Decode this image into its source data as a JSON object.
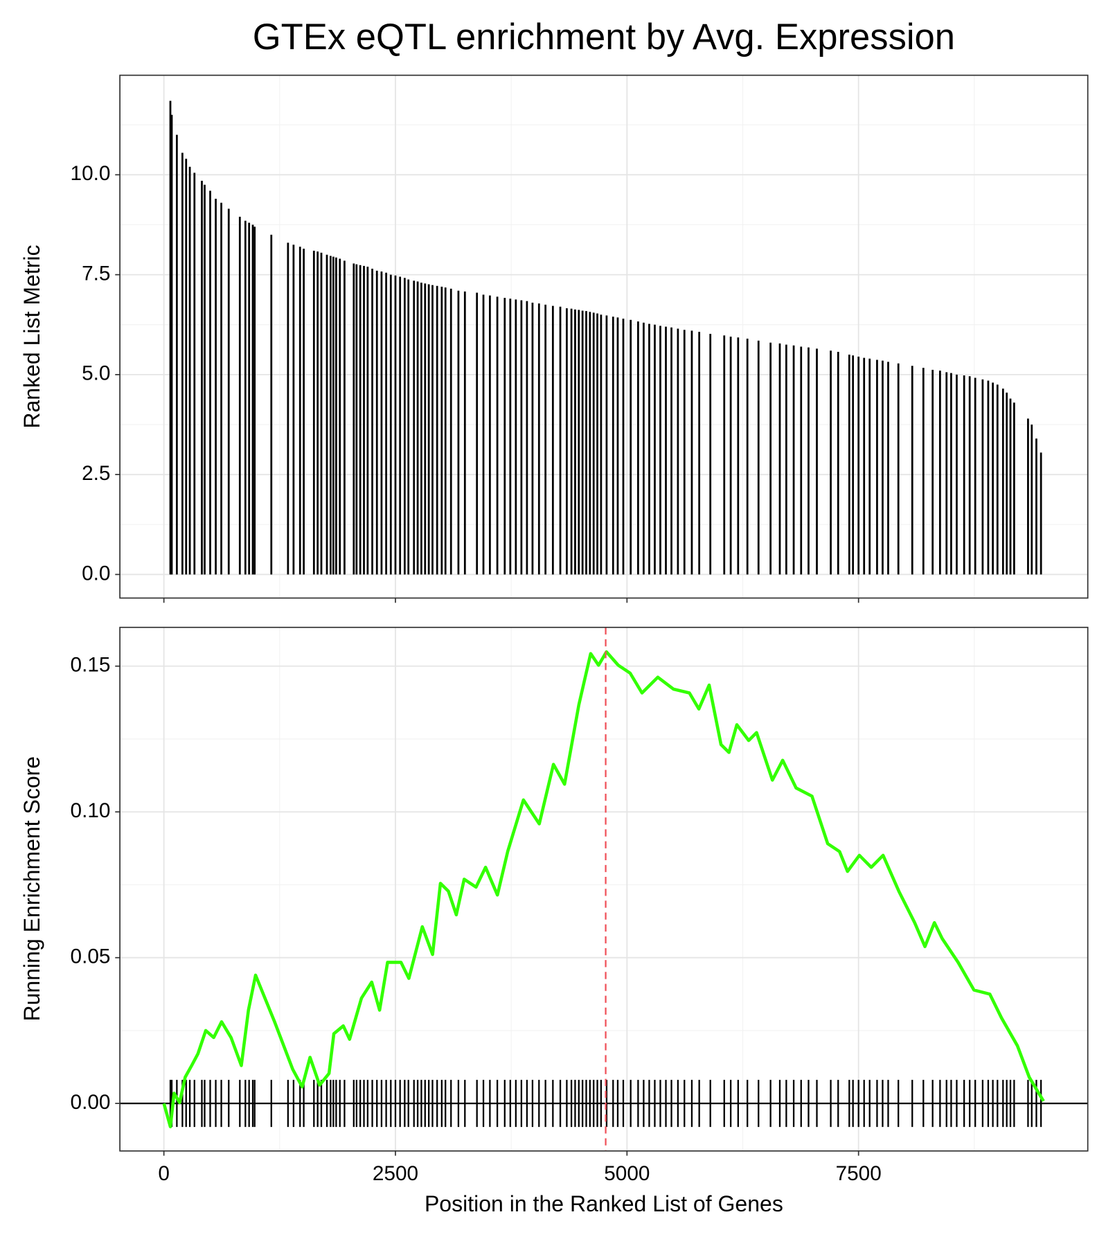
{
  "chart_data": [
    {
      "type": "bar",
      "title": "GTEx eQTL enrichment by Avg. Expression",
      "ylabel": "Ranked List Metric",
      "x": [
        70,
        85,
        140,
        200,
        240,
        280,
        330,
        410,
        440,
        500,
        560,
        620,
        700,
        820,
        880,
        920,
        960,
        980,
        1160,
        1340,
        1400,
        1470,
        1510,
        1620,
        1660,
        1700,
        1760,
        1800,
        1830,
        1860,
        1900,
        1950,
        2050,
        2080,
        2120,
        2160,
        2200,
        2250,
        2300,
        2350,
        2400,
        2450,
        2500,
        2550,
        2600,
        2640,
        2700,
        2740,
        2780,
        2820,
        2860,
        2900,
        2950,
        3000,
        3040,
        3100,
        3180,
        3250,
        3380,
        3450,
        3520,
        3600,
        3680,
        3740,
        3800,
        3860,
        3920,
        3980,
        4050,
        4120,
        4200,
        4280,
        4350,
        4400,
        4440,
        4480,
        4520,
        4560,
        4600,
        4640,
        4680,
        4720,
        4780,
        4850,
        4900,
        4960,
        5040,
        5120,
        5180,
        5240,
        5300,
        5360,
        5420,
        5480,
        5550,
        5620,
        5700,
        5780,
        5900,
        6050,
        6120,
        6200,
        6300,
        6420,
        6550,
        6650,
        6720,
        6800,
        6880,
        6960,
        7050,
        7200,
        7280,
        7400,
        7440,
        7500,
        7560,
        7620,
        7700,
        7760,
        7820,
        7930,
        8080,
        8200,
        8300,
        8380,
        8450,
        8500,
        8560,
        8640,
        8700,
        8760,
        8840,
        8900,
        8950,
        9000,
        9060,
        9100,
        9140,
        9180,
        9330,
        9370,
        9420,
        9470
      ],
      "values": [
        11.85,
        11.5,
        11.0,
        10.55,
        10.4,
        10.2,
        10.05,
        9.85,
        9.75,
        9.6,
        9.4,
        9.3,
        9.15,
        8.95,
        8.85,
        8.8,
        8.75,
        8.7,
        8.5,
        8.3,
        8.25,
        8.2,
        8.15,
        8.1,
        8.08,
        8.05,
        8.0,
        7.97,
        7.95,
        7.93,
        7.9,
        7.85,
        7.78,
        7.76,
        7.74,
        7.72,
        7.7,
        7.65,
        7.6,
        7.58,
        7.55,
        7.5,
        7.48,
        7.45,
        7.42,
        7.38,
        7.35,
        7.33,
        7.3,
        7.28,
        7.26,
        7.24,
        7.22,
        7.2,
        7.18,
        7.15,
        7.1,
        7.08,
        7.05,
        7.0,
        6.98,
        6.95,
        6.92,
        6.9,
        6.88,
        6.86,
        6.84,
        6.8,
        6.78,
        6.75,
        6.72,
        6.7,
        6.66,
        6.65,
        6.63,
        6.62,
        6.6,
        6.59,
        6.57,
        6.55,
        6.53,
        6.5,
        6.48,
        6.45,
        6.43,
        6.4,
        6.37,
        6.33,
        6.3,
        6.27,
        6.25,
        6.22,
        6.2,
        6.18,
        6.15,
        6.12,
        6.1,
        6.07,
        6.02,
        5.98,
        5.95,
        5.93,
        5.9,
        5.85,
        5.8,
        5.78,
        5.75,
        5.73,
        5.7,
        5.68,
        5.65,
        5.6,
        5.57,
        5.5,
        5.48,
        5.45,
        5.42,
        5.4,
        5.37,
        5.35,
        5.32,
        5.28,
        5.22,
        5.17,
        5.12,
        5.1,
        5.06,
        5.04,
        5.0,
        4.98,
        4.96,
        4.92,
        4.88,
        4.85,
        4.8,
        4.75,
        4.65,
        4.55,
        4.4,
        4.3,
        3.9,
        3.75,
        3.4,
        3.05
      ],
      "color": "#000000",
      "xlim": [
        -475,
        9975
      ],
      "xticks": [
        0,
        2500,
        5000,
        7500
      ],
      "ylim": [
        -0.59,
        12.49
      ],
      "yticks": [
        {
          "value": 0,
          "label": "0.0"
        },
        2.5,
        {
          "value": 5,
          "label": "5.0"
        },
        7.5,
        {
          "value": 10,
          "label": "10.0"
        }
      ],
      "grid": true
    },
    {
      "type": "line",
      "ylabel": "Running Enrichment Score",
      "xlabel": "Position in the Ranked List of Genes",
      "x": [
        0,
        70,
        110,
        170,
        230,
        300,
        367,
        452,
        538,
        623,
        725,
        836,
        913,
        990,
        1195,
        1391,
        1493,
        1578,
        1681,
        1783,
        1835,
        1937,
        2005,
        2133,
        2244,
        2329,
        2415,
        2560,
        2645,
        2790,
        2901,
        2986,
        3072,
        3157,
        3242,
        3370,
        3473,
        3601,
        3712,
        3882,
        4053,
        4206,
        4326,
        4480,
        4608,
        4693,
        4778,
        4906,
        5034,
        5162,
        5333,
        5503,
        5674,
        5776,
        5887,
        6015,
        6101,
        6186,
        6314,
        6399,
        6570,
        6681,
        6826,
        6997,
        7167,
        7295,
        7381,
        7509,
        7637,
        7765,
        7935,
        8106,
        8217,
        8319,
        8404,
        8575,
        8746,
        8917,
        9044,
        9215,
        9343,
        9497
      ],
      "values": [
        0,
        -0.008,
        0.0035,
        0.0003,
        0.009,
        0.013,
        0.017,
        0.025,
        0.0226,
        0.028,
        0.0226,
        0.013,
        0.032,
        0.044,
        0.028,
        0.0117,
        0.0057,
        0.0158,
        0.0063,
        0.0103,
        0.0239,
        0.0266,
        0.022,
        0.0361,
        0.0416,
        0.032,
        0.0484,
        0.0484,
        0.0429,
        0.0606,
        0.0511,
        0.0755,
        0.0728,
        0.0647,
        0.0769,
        0.0742,
        0.081,
        0.0715,
        0.0864,
        0.1041,
        0.0959,
        0.1163,
        0.1095,
        0.1367,
        0.1543,
        0.1503,
        0.1549,
        0.1503,
        0.1476,
        0.1408,
        0.1462,
        0.1421,
        0.1408,
        0.1353,
        0.1435,
        0.1231,
        0.1204,
        0.1299,
        0.1245,
        0.1272,
        0.1109,
        0.1177,
        0.1082,
        0.1054,
        0.0891,
        0.0864,
        0.0796,
        0.0851,
        0.081,
        0.0851,
        0.0728,
        0.062,
        0.0538,
        0.062,
        0.0565,
        0.0484,
        0.0389,
        0.0375,
        0.0293,
        0.0198,
        0.009,
        0.0008
      ],
      "color": "#33ff00",
      "vline": 4770,
      "vline_color": "#f0525a",
      "xlim": [
        -475,
        9975
      ],
      "xticks": [
        0,
        2500,
        5000,
        7500
      ],
      "ylim": [
        -0.0163,
        0.1633
      ],
      "yticks": [
        {
          "value": 0,
          "label": "0.00"
        },
        {
          "value": 0.05,
          "label": "0.05"
        },
        {
          "value": 0.1,
          "label": "0.10"
        },
        {
          "value": 0.15,
          "label": "0.15"
        }
      ],
      "grid": true
    }
  ]
}
